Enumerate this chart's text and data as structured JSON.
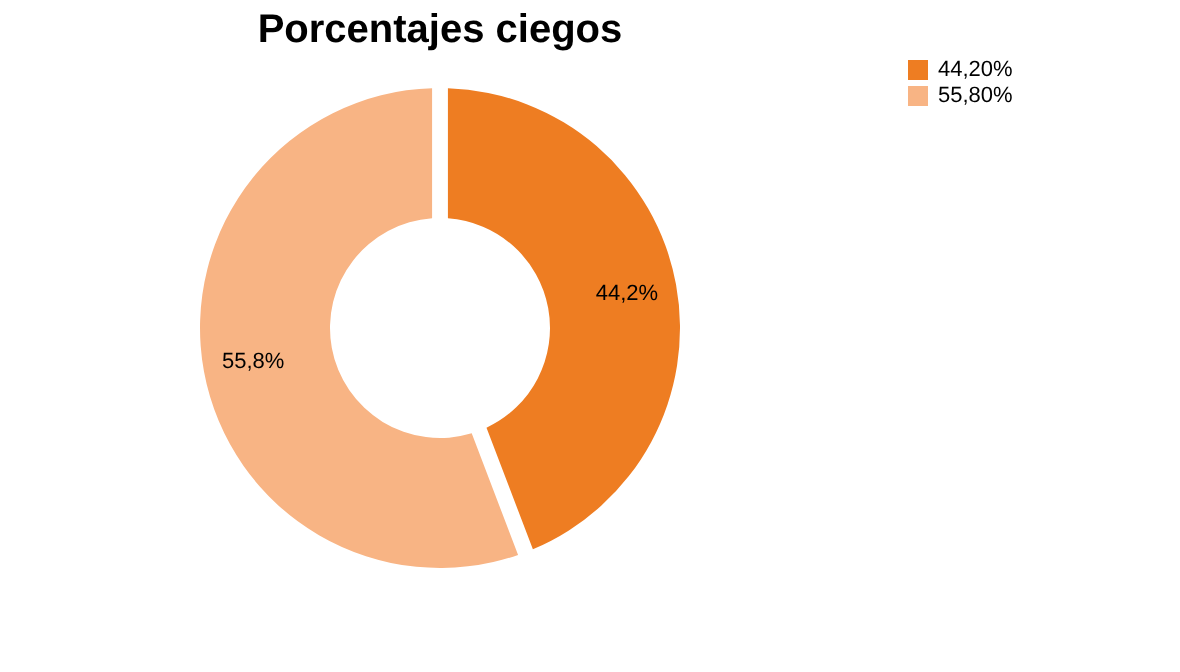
{
  "chart_data": {
    "type": "donut",
    "title": "Porcentajes ciegos",
    "categories": [
      "44,20%",
      "55,80%"
    ],
    "values": [
      44.2,
      55.8
    ],
    "colors": [
      "#ee7d22",
      "#f8b484"
    ],
    "value_labels": [
      "44,2%",
      "55,8%"
    ],
    "legend": "right"
  }
}
